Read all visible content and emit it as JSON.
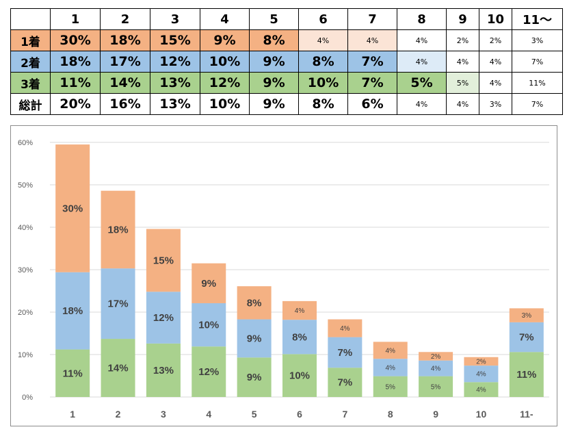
{
  "table": {
    "headers": [
      "",
      "1",
      "2",
      "3",
      "4",
      "5",
      "6",
      "7",
      "8",
      "9",
      "10",
      "11～"
    ],
    "rows": [
      {
        "label": "1着",
        "cells": [
          "30%",
          "18%",
          "15%",
          "9%",
          "8%",
          "4%",
          "4%",
          "4%",
          "2%",
          "2%",
          "3%"
        ]
      },
      {
        "label": "2着",
        "cells": [
          "18%",
          "17%",
          "12%",
          "10%",
          "9%",
          "8%",
          "7%",
          "4%",
          "4%",
          "4%",
          "7%"
        ]
      },
      {
        "label": "3着",
        "cells": [
          "11%",
          "14%",
          "13%",
          "12%",
          "9%",
          "10%",
          "7%",
          "5%",
          "5%",
          "4%",
          "11%"
        ]
      },
      {
        "label": "総計",
        "cells": [
          "20%",
          "16%",
          "13%",
          "10%",
          "9%",
          "8%",
          "6%",
          "4%",
          "4%",
          "3%",
          "7%"
        ]
      }
    ]
  },
  "colors": {
    "first": "#f4b183",
    "second": "#9dc3e6",
    "third": "#a9d18e",
    "first_light": "#fbe4d6",
    "second_light": "#ddebf7",
    "third_light": "#e2efda"
  },
  "chart_data": {
    "type": "bar",
    "stacked": true,
    "categories": [
      "1",
      "2",
      "3",
      "4",
      "5",
      "6",
      "7",
      "8",
      "9",
      "10",
      "11-"
    ],
    "series": [
      {
        "values": [
          11.2,
          13.7,
          12.6,
          11.9,
          9.3,
          10.1,
          6.9,
          4.9,
          4.9,
          3.5,
          10.6
        ],
        "labels": [
          "11%",
          "14%",
          "13%",
          "12%",
          "9%",
          "10%",
          "7%",
          "5%",
          "5%",
          "4%",
          "11%"
        ]
      },
      {
        "values": [
          18.2,
          16.6,
          12.2,
          10.2,
          9.0,
          8.1,
          7.2,
          4.1,
          3.7,
          3.9,
          7.0
        ],
        "labels": [
          "18%",
          "17%",
          "12%",
          "10%",
          "9%",
          "8%",
          "7%",
          "4%",
          "4%",
          "4%",
          "7%"
        ]
      },
      {
        "values": [
          30.1,
          18.3,
          14.8,
          9.4,
          7.8,
          4.4,
          4.2,
          4.0,
          2.0,
          2.0,
          3.3
        ],
        "labels": [
          "30%",
          "18%",
          "15%",
          "9%",
          "8%",
          "4%",
          "4%",
          "4%",
          "2%",
          "2%",
          "3%"
        ]
      }
    ],
    "ylim": [
      0,
      60
    ],
    "yticks": [
      "0%",
      "10%",
      "20%",
      "30%",
      "40%",
      "50%",
      "60%"
    ],
    "grid": true
  }
}
